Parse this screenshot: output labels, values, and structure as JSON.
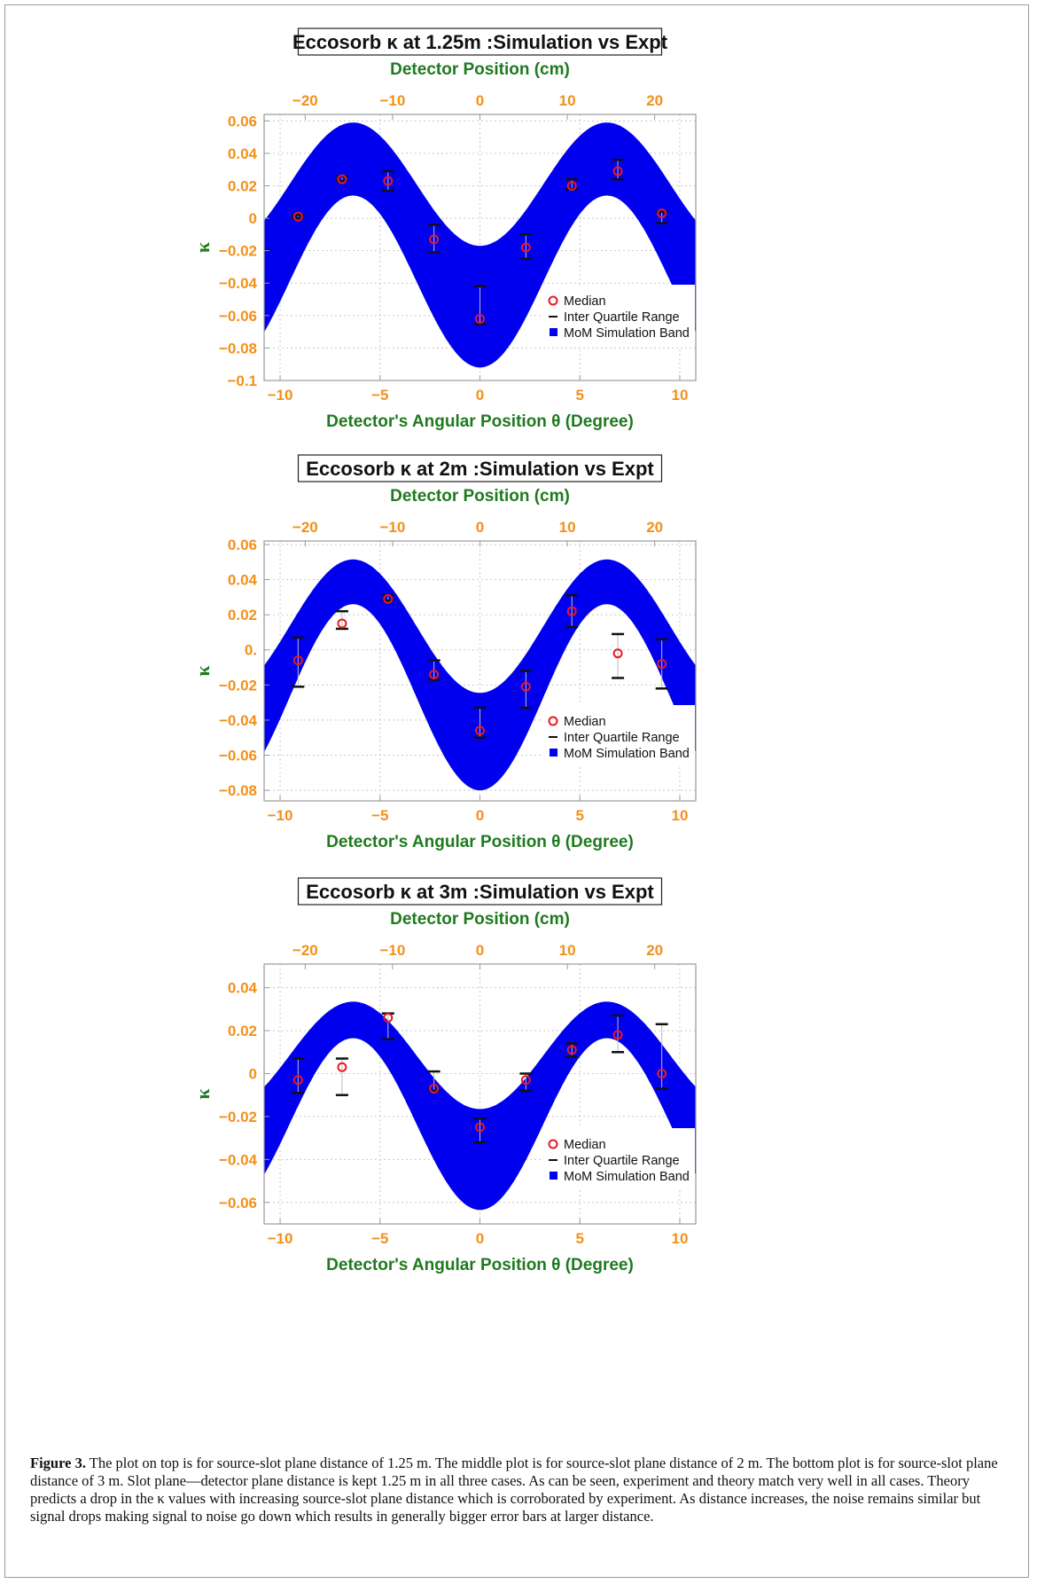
{
  "chart_data": [
    {
      "type": "scatter",
      "title": "Eccosorb κ at 1.25m :Simulation vs Expt",
      "top_axis_label": "Detector Position (cm)",
      "xlabel": "Detector's Angular Position θ (Degree)",
      "ylabel": "κ",
      "xlim": [
        -10.8,
        10.8
      ],
      "ylim": [
        -0.1,
        0.064
      ],
      "top_xlim": [
        -24.7,
        24.7
      ],
      "x_ticks": [
        "−10",
        "−5",
        "0",
        "5",
        "10"
      ],
      "x_tick_values": [
        -10,
        -5,
        0,
        5,
        10
      ],
      "top_ticks": [
        "−20",
        "−10",
        "0",
        "10",
        "20"
      ],
      "top_tick_values": [
        -20,
        -10,
        0,
        10,
        20
      ],
      "y_ticks": [
        "0.06",
        "0.04",
        "0.02",
        "0",
        "−0.02",
        "−0.04",
        "−0.06",
        "−0.08",
        "−0.1"
      ],
      "y_tick_values": [
        0.06,
        0.04,
        0.02,
        0,
        -0.02,
        -0.04,
        -0.06,
        -0.08,
        -0.1
      ],
      "grid": true,
      "legend_position": "bottom-right",
      "legend": [
        "Median",
        "Inter Quartile Range",
        "MoM Simulation Band"
      ],
      "band": {
        "name": "MoM Simulation Band",
        "period": 12.7,
        "upper_amp": 0.038,
        "upper_offset": 0.021,
        "lower_amp": 0.053,
        "lower_offset": -0.039,
        "x_range": [
          -10.8,
          10.8
        ]
      },
      "series": [
        {
          "name": "Median",
          "x": [
            -9.1,
            -6.9,
            -4.6,
            -2.3,
            0,
            2.3,
            4.6,
            6.9,
            9.1
          ],
          "y": [
            0.001,
            0.024,
            0.023,
            -0.013,
            -0.062,
            -0.018,
            0.02,
            0.029,
            0.003
          ]
        },
        {
          "name": "Inter Quartile Range",
          "x": [
            -9.1,
            -6.9,
            -4.6,
            -2.3,
            0,
            2.3,
            4.6,
            6.9,
            9.1
          ],
          "low": [
            0.0,
            0.023,
            0.017,
            -0.021,
            -0.065,
            -0.025,
            0.018,
            0.024,
            -0.003
          ],
          "high": [
            0.002,
            0.026,
            0.029,
            -0.004,
            -0.042,
            -0.01,
            0.024,
            0.036,
            0.004
          ]
        }
      ]
    },
    {
      "type": "scatter",
      "title": "Eccosorb κ at 2m :Simulation vs Expt",
      "top_axis_label": "Detector Position (cm)",
      "xlabel": "Detector's Angular Position θ (Degree)",
      "ylabel": "κ",
      "xlim": [
        -10.8,
        10.8
      ],
      "ylim": [
        -0.086,
        0.062
      ],
      "top_xlim": [
        -24.7,
        24.7
      ],
      "x_ticks": [
        "−10",
        "−5",
        "0",
        "5",
        "10"
      ],
      "x_tick_values": [
        -10,
        -5,
        0,
        5,
        10
      ],
      "top_ticks": [
        "−20",
        "−10",
        "0",
        "10",
        "20"
      ],
      "top_tick_values": [
        -20,
        -10,
        0,
        10,
        20
      ],
      "y_ticks": [
        "0.06",
        "0.04",
        "0.02",
        "0.",
        "−0.02",
        "−0.04",
        "−0.06",
        "−0.08"
      ],
      "y_tick_values": [
        0.06,
        0.04,
        0.02,
        0,
        -0.02,
        -0.04,
        -0.06,
        -0.08
      ],
      "grid": true,
      "legend_position": "bottom-right",
      "legend": [
        "Median",
        "Inter Quartile Range",
        "MoM Simulation Band"
      ],
      "band": {
        "name": "MoM Simulation Band",
        "period": 12.7,
        "upper_amp": 0.038,
        "upper_offset": 0.0135,
        "lower_amp": 0.053,
        "lower_offset": -0.027,
        "x_range": [
          -10.8,
          10.8
        ]
      },
      "series": [
        {
          "name": "Median",
          "x": [
            -9.1,
            -6.9,
            -4.6,
            -2.3,
            0,
            2.3,
            4.6,
            6.9,
            9.1
          ],
          "y": [
            -0.006,
            0.015,
            0.029,
            -0.014,
            -0.046,
            -0.021,
            0.022,
            -0.002,
            -0.008
          ]
        },
        {
          "name": "Inter Quartile Range",
          "x": [
            -9.1,
            -6.9,
            -4.6,
            -2.3,
            0,
            2.3,
            4.6,
            6.9,
            9.1
          ],
          "low": [
            -0.021,
            0.012,
            0.028,
            -0.017,
            -0.05,
            -0.033,
            0.013,
            -0.016,
            -0.022
          ],
          "high": [
            0.007,
            0.022,
            0.031,
            -0.006,
            -0.033,
            -0.012,
            0.031,
            0.009,
            0.006
          ]
        }
      ]
    },
    {
      "type": "scatter",
      "title": "Eccosorb κ at 3m :Simulation vs Expt",
      "top_axis_label": "Detector Position (cm)",
      "xlabel": "Detector's Angular Position θ (Degree)",
      "ylabel": "κ",
      "xlim": [
        -10.8,
        10.8
      ],
      "ylim": [
        -0.07,
        0.051
      ],
      "top_xlim": [
        -24.7,
        24.7
      ],
      "x_ticks": [
        "−10",
        "−5",
        "0",
        "5",
        "10"
      ],
      "x_tick_values": [
        -10,
        -5,
        0,
        5,
        10
      ],
      "top_ticks": [
        "−20",
        "−10",
        "0",
        "10",
        "20"
      ],
      "top_tick_values": [
        -20,
        -10,
        0,
        10,
        20
      ],
      "y_ticks": [
        "0.04",
        "0.02",
        "0",
        "−0.02",
        "−0.04",
        "−0.06"
      ],
      "y_tick_values": [
        0.04,
        0.02,
        0,
        -0.02,
        -0.04,
        -0.06
      ],
      "grid": true,
      "legend_position": "bottom-right",
      "legend": [
        "Median",
        "Inter Quartile Range",
        "MoM Simulation Band"
      ],
      "band": {
        "name": "MoM Simulation Band",
        "period": 12.7,
        "upper_amp": 0.025,
        "upper_offset": 0.0085,
        "lower_amp": 0.04,
        "lower_offset": -0.0235,
        "x_range": [
          -10.8,
          10.8
        ]
      },
      "series": [
        {
          "name": "Median",
          "x": [
            -9.1,
            -6.9,
            -4.6,
            -2.3,
            0,
            2.3,
            4.6,
            6.9,
            9.1
          ],
          "y": [
            -0.003,
            0.003,
            0.026,
            -0.007,
            -0.025,
            -0.003,
            0.011,
            0.018,
            0.0
          ]
        },
        {
          "name": "Inter Quartile Range",
          "x": [
            -9.1,
            -6.9,
            -4.6,
            -2.3,
            0,
            2.3,
            4.6,
            6.9,
            9.1
          ],
          "low": [
            -0.009,
            -0.01,
            0.016,
            -0.008,
            -0.032,
            -0.008,
            0.008,
            0.01,
            -0.007
          ],
          "high": [
            0.007,
            0.007,
            0.028,
            0.001,
            -0.021,
            0.0,
            0.014,
            0.027,
            0.023
          ]
        }
      ]
    }
  ],
  "caption": {
    "label": "Figure 3.",
    "text": "The plot on top is for source-slot plane distance of 1.25 m. The middle plot is for source-slot plane distance of 2 m. The bottom plot is for source-slot plane distance of 3 m. Slot plane—detector plane distance is kept 1.25 m in all three cases. As can be seen, experiment and theory match very well in all cases. Theory predicts a drop in the κ values with increasing source-slot plane distance which is corroborated by experiment. As distance increases, the noise remains similar but signal drops making signal to noise go down which results in generally bigger error bars at larger distance."
  },
  "colors": {
    "band": "#0000ee",
    "median": "#e8191f",
    "axis_text": "#f39019",
    "label_text": "#1f7a1f",
    "frame": "#9a9a9a",
    "grid": "#c8c8c8"
  }
}
